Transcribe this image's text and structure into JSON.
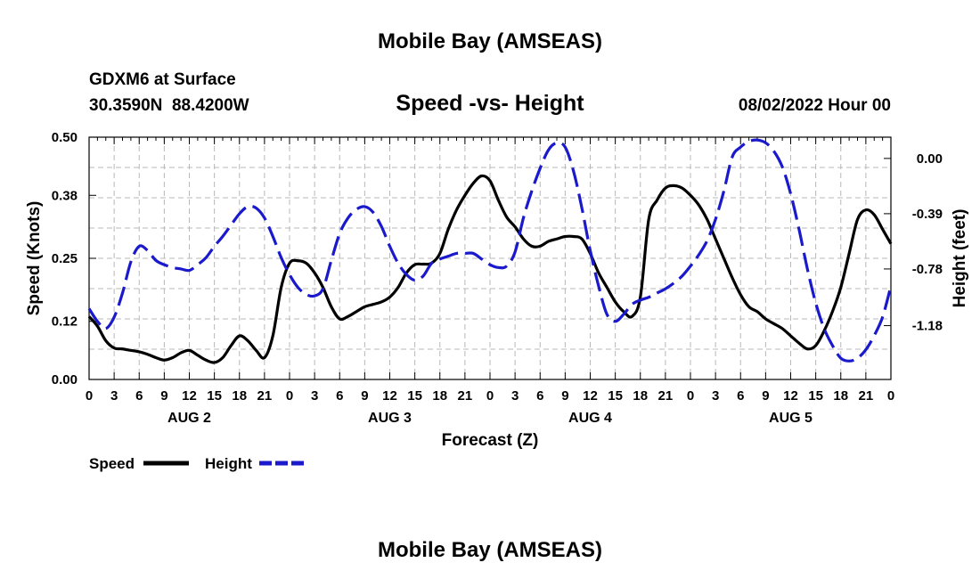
{
  "page": {
    "top_title": "Mobile Bay (AMSEAS)",
    "bottom_title": "Mobile Bay (AMSEAS)",
    "station_line1": "GDXM6 at Surface",
    "station_line2": "30.3590N  88.4200W",
    "plot_title": "Speed -vs- Height",
    "run_time": "08/02/2022 Hour 00"
  },
  "chart_data": {
    "type": "line",
    "title": "Speed -vs- Height",
    "xlabel": "Forecast (Z)",
    "ylabel": "Speed (Knots)",
    "y2label": "Height (feet)",
    "ylim": [
      0.0,
      0.5
    ],
    "y2lim": [
      -1.56,
      0.15
    ],
    "xlim": [
      0,
      96
    ],
    "x_tick_labels": [
      "0",
      "3",
      "6",
      "9",
      "12",
      "15",
      "18",
      "21",
      "0",
      "3",
      "6",
      "9",
      "12",
      "15",
      "18",
      "21",
      "0",
      "3",
      "6",
      "9",
      "12",
      "15",
      "18",
      "21",
      "0",
      "3",
      "6",
      "9",
      "12",
      "15",
      "18",
      "21",
      "0"
    ],
    "day_labels": [
      "AUG 2",
      "AUG 3",
      "AUG 4",
      "AUG 5"
    ],
    "y_ticks": [
      0.0,
      0.12,
      0.25,
      0.38,
      0.5
    ],
    "y_tick_labels": [
      "0.00",
      "0.12",
      "0.25",
      "0.38",
      "0.50"
    ],
    "y2_ticks": [
      0.0,
      -0.39,
      -0.78,
      -1.18
    ],
    "y2_tick_labels": [
      "0.00",
      "-0.39",
      "-0.78",
      "-1.18"
    ],
    "grid": true,
    "legend_placement": "bottom-left",
    "series": [
      {
        "name": "Speed",
        "axis": "left",
        "color": "#000000",
        "style": "solid",
        "x": [
          0,
          1,
          2,
          3,
          4,
          5,
          6,
          7,
          8,
          9,
          10,
          11,
          12,
          13,
          14,
          15,
          16,
          17,
          18,
          19,
          20,
          21,
          22,
          23,
          24,
          25,
          26,
          27,
          28,
          29,
          30,
          31,
          32,
          33,
          34,
          35,
          36,
          37,
          38,
          39,
          40,
          41,
          42,
          43,
          44,
          45,
          46,
          47,
          48,
          49,
          50,
          51,
          52,
          53,
          54,
          55,
          56,
          57,
          58,
          59,
          60,
          61,
          62,
          63,
          64,
          65,
          66,
          67,
          68,
          69,
          70,
          71,
          72,
          73,
          74,
          75,
          76,
          77,
          78,
          79,
          80,
          81,
          82,
          83,
          84,
          85,
          86,
          87,
          88,
          89,
          90,
          91,
          92,
          93,
          94,
          95,
          96
        ],
        "values": [
          0.13,
          0.11,
          0.08,
          0.065,
          0.063,
          0.06,
          0.057,
          0.052,
          0.045,
          0.04,
          0.045,
          0.055,
          0.06,
          0.05,
          0.04,
          0.035,
          0.045,
          0.07,
          0.09,
          0.08,
          0.06,
          0.045,
          0.09,
          0.19,
          0.24,
          0.245,
          0.24,
          0.22,
          0.19,
          0.15,
          0.125,
          0.13,
          0.14,
          0.15,
          0.155,
          0.16,
          0.17,
          0.19,
          0.22,
          0.237,
          0.238,
          0.24,
          0.26,
          0.31,
          0.35,
          0.38,
          0.405,
          0.42,
          0.41,
          0.37,
          0.335,
          0.315,
          0.29,
          0.275,
          0.275,
          0.285,
          0.29,
          0.295,
          0.295,
          0.29,
          0.26,
          0.22,
          0.19,
          0.16,
          0.14,
          0.13,
          0.17,
          0.33,
          0.37,
          0.395,
          0.4,
          0.395,
          0.38,
          0.36,
          0.33,
          0.29,
          0.25,
          0.21,
          0.175,
          0.15,
          0.14,
          0.125,
          0.115,
          0.105,
          0.09,
          0.075,
          0.063,
          0.07,
          0.1,
          0.14,
          0.19,
          0.26,
          0.33,
          0.35,
          0.34,
          0.31,
          0.28
        ]
      },
      {
        "name": "Height",
        "axis": "right",
        "color": "#1a1acc",
        "style": "dashed",
        "x": [
          0,
          1,
          2,
          3,
          4,
          5,
          6,
          7,
          8,
          9,
          10,
          11,
          12,
          13,
          14,
          15,
          16,
          17,
          18,
          19,
          20,
          21,
          22,
          23,
          24,
          25,
          26,
          27,
          28,
          29,
          30,
          31,
          32,
          33,
          34,
          35,
          36,
          37,
          38,
          39,
          40,
          41,
          42,
          43,
          44,
          45,
          46,
          47,
          48,
          49,
          50,
          51,
          52,
          53,
          54,
          55,
          56,
          57,
          58,
          59,
          60,
          61,
          62,
          63,
          64,
          65,
          66,
          67,
          68,
          69,
          70,
          71,
          72,
          73,
          74,
          75,
          76,
          77,
          78,
          79,
          80,
          81,
          82,
          83,
          84,
          85,
          86,
          87,
          88,
          89,
          90,
          91,
          92,
          93,
          94,
          95,
          96
        ],
        "values": [
          -1.06,
          -1.15,
          -1.2,
          -1.12,
          -0.95,
          -0.73,
          -0.62,
          -0.65,
          -0.72,
          -0.75,
          -0.77,
          -0.78,
          -0.79,
          -0.75,
          -0.7,
          -0.62,
          -0.55,
          -0.47,
          -0.39,
          -0.34,
          -0.35,
          -0.42,
          -0.55,
          -0.7,
          -0.82,
          -0.91,
          -0.96,
          -0.97,
          -0.92,
          -0.72,
          -0.53,
          -0.42,
          -0.36,
          -0.34,
          -0.38,
          -0.48,
          -0.62,
          -0.74,
          -0.82,
          -0.86,
          -0.83,
          -0.74,
          -0.71,
          -0.69,
          -0.67,
          -0.67,
          -0.67,
          -0.71,
          -0.75,
          -0.77,
          -0.76,
          -0.66,
          -0.42,
          -0.23,
          -0.07,
          0.06,
          0.11,
          0.08,
          -0.09,
          -0.35,
          -0.65,
          -0.9,
          -1.1,
          -1.15,
          -1.1,
          -1.03,
          -1.0,
          -0.98,
          -0.95,
          -0.92,
          -0.88,
          -0.83,
          -0.76,
          -0.68,
          -0.58,
          -0.43,
          -0.23,
          0.01,
          0.08,
          0.12,
          0.13,
          0.11,
          0.05,
          -0.06,
          -0.25,
          -0.5,
          -0.78,
          -1.02,
          -1.2,
          -1.32,
          -1.41,
          -1.43,
          -1.41,
          -1.35,
          -1.25,
          -1.12,
          -0.9
        ]
      }
    ]
  },
  "legend": {
    "speed_label": "Speed",
    "height_label": "Height",
    "speed_color": "#000000",
    "height_color": "#1a1acc"
  }
}
